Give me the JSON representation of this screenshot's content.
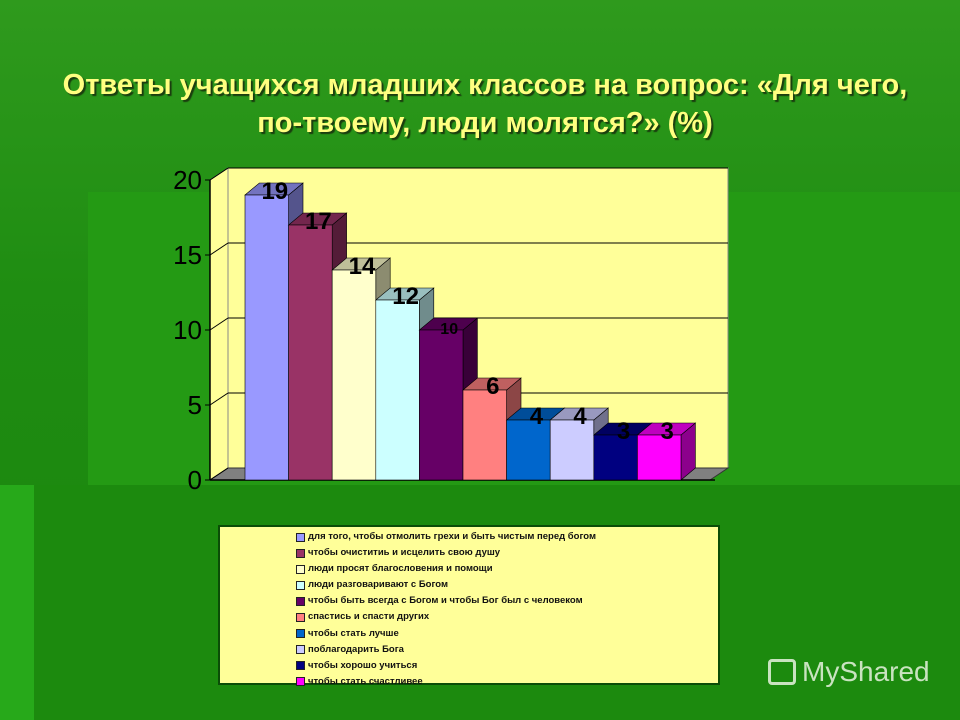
{
  "title": "Ответы учащихся младших классов на вопрос: «Для чего, по-твоему, люди молятся?» (%)",
  "chart_data": {
    "type": "bar",
    "title": "Ответы учащихся младших классов на вопрос: «Для чего, по-твоему, люди молятся?» (%)",
    "categories": [
      "для того, чтобы отмолить грехи и быть чистым перед богом",
      "чтобы очиститиь и исцелить  свою душу",
      "люди просят благословения и помощи",
      "люди разговаривают с Богом",
      "чтобы быть всегда с Богом и чтобы Бог был с человеком",
      "спастись и спасти других",
      "чтобы стать лучше",
      "поблагодарить Бога",
      "чтобы хорошо учиться",
      "чтобы стать счастливее"
    ],
    "values": [
      19,
      17,
      14,
      12,
      10,
      6,
      4,
      4,
      3,
      3
    ],
    "colors": [
      "#9999ff",
      "#993366",
      "#ffffcc",
      "#ccffff",
      "#660066",
      "#ff8080",
      "#0066cc",
      "#ccccff",
      "#000080",
      "#ff00ff"
    ],
    "yticks": [
      "0",
      "5",
      "10",
      "15",
      "20"
    ],
    "ylim": [
      0,
      20
    ],
    "grid": true,
    "legend": "bottom",
    "plot_background": "#ffff99"
  },
  "watermark": "MyShared"
}
